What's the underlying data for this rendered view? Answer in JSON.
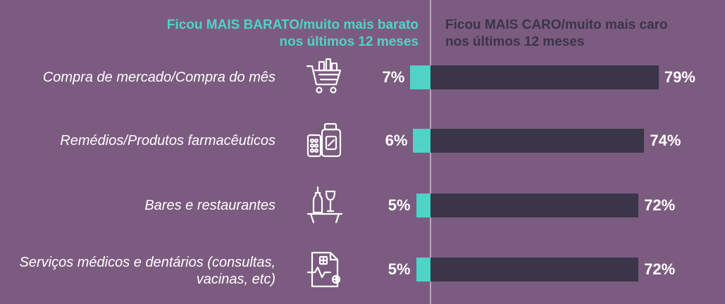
{
  "legend": {
    "cheaper": "Ficou MAIS BARATO/muito mais barato nos últimos 12 meses",
    "expensive": "Ficou MAIS CARO/muito mais caro nos últimos 12 meses"
  },
  "colors": {
    "background": "#7c5b80",
    "cheaper": "#4fd3c7",
    "expensive": "#3a3549"
  },
  "chart_data": {
    "type": "bar",
    "orientation": "horizontal-diverging",
    "categories": [
      "Compra de mercado/Compra do mês",
      "Remédios/Produtos farmacêuticos",
      "Bares e restaurantes",
      "Serviços médicos e dentários (consultas, vacinas, etc)"
    ],
    "icons": [
      "shopping-cart-icon",
      "medicine-icon",
      "wine-bar-icon",
      "medical-report-icon"
    ],
    "series": [
      {
        "name": "Ficou MAIS BARATO/muito mais barato nos últimos 12 meses",
        "values": [
          7,
          6,
          5,
          5
        ],
        "labels": [
          "7%",
          "6%",
          "5%",
          "5%"
        ]
      },
      {
        "name": "Ficou MAIS CARO/muito mais caro nos últimos 12 meses",
        "values": [
          79,
          74,
          72,
          72
        ],
        "labels": [
          "79%",
          "74%",
          "72%",
          "72%"
        ]
      }
    ],
    "unit": "%",
    "xlim": [
      0,
      100
    ]
  }
}
